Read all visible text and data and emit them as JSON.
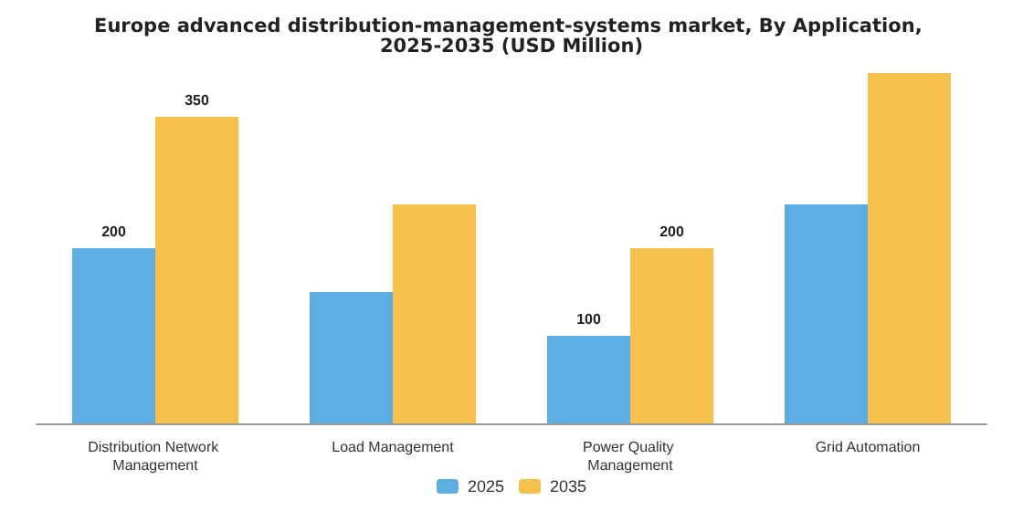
{
  "chart_data": {
    "type": "bar",
    "title": "Europe advanced distribution-management-systems market, By Application, 2025-2035 (USD Million)",
    "categories": [
      "Distribution Network Management",
      "Load Management",
      "Power Quality Management",
      "Grid Automation"
    ],
    "series": [
      {
        "name": "2025",
        "color": "#5dade2",
        "values": [
          200,
          150,
          100,
          250
        ],
        "value_labels": [
          "200",
          null,
          "100",
          null
        ]
      },
      {
        "name": "2035",
        "color": "#f7c04a",
        "values": [
          350,
          250,
          200,
          400
        ],
        "value_labels": [
          "350",
          null,
          "200",
          null
        ]
      }
    ],
    "legend": "bottom"
  }
}
